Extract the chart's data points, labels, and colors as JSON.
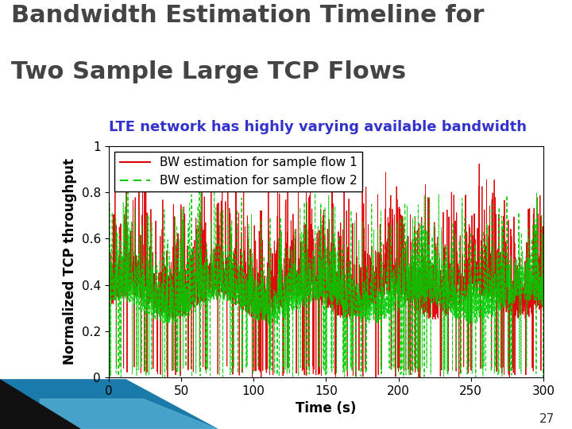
{
  "title_line1": "Bandwidth Estimation Timeline for",
  "title_line2": "Two Sample Large TCP Flows",
  "subtitle": "LTE network has highly varying available bandwidth",
  "subtitle_color": "#3333CC",
  "xlabel": "Time (s)",
  "ylabel": "Normalized TCP throughput",
  "xlim": [
    0,
    300
  ],
  "ylim": [
    0,
    1
  ],
  "xticks": [
    0,
    50,
    100,
    150,
    200,
    250,
    300
  ],
  "yticks": [
    0,
    0.2,
    0.4,
    0.6,
    0.8,
    1
  ],
  "ytick_labels": [
    "0",
    "0.2",
    "0.4",
    "0.6",
    "0.8",
    "1"
  ],
  "legend_label_1": "BW estimation for sample flow 1",
  "legend_label_2": "BW estimation for sample flow 2",
  "line1_color": "#DD0000",
  "line2_color": "#00CC00",
  "background_color": "#ffffff",
  "title_color": "#444444",
  "title_fontsize": 22,
  "subtitle_fontsize": 13,
  "label_fontsize": 12,
  "tick_fontsize": 11,
  "legend_fontsize": 11,
  "page_number": "27",
  "decoration_teal": "#1a7aaa",
  "decoration_dark": "#111111"
}
